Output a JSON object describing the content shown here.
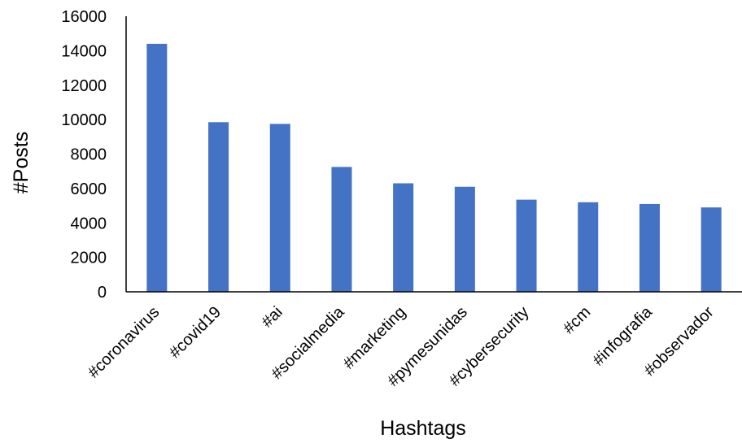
{
  "chart_data": {
    "type": "bar",
    "categories": [
      "#coronavirus",
      "#covid19",
      "#ai",
      "#socialmedia",
      "#marketing",
      "#pymesunidas",
      "#cybersecurity",
      "#cm",
      "#infografia",
      "#observador"
    ],
    "values": [
      14400,
      9850,
      9750,
      7250,
      6300,
      6100,
      5350,
      5200,
      5100,
      4900
    ],
    "title": "",
    "xlabel": "Hashtags",
    "ylabel": "#Posts",
    "ylim": [
      0,
      16000
    ],
    "yticks": [
      "0",
      "2000",
      "4000",
      "6000",
      "8000",
      "10000",
      "12000",
      "14000",
      "16000"
    ],
    "bar_color": "#4472C4",
    "grid": false,
    "legend": "none"
  }
}
